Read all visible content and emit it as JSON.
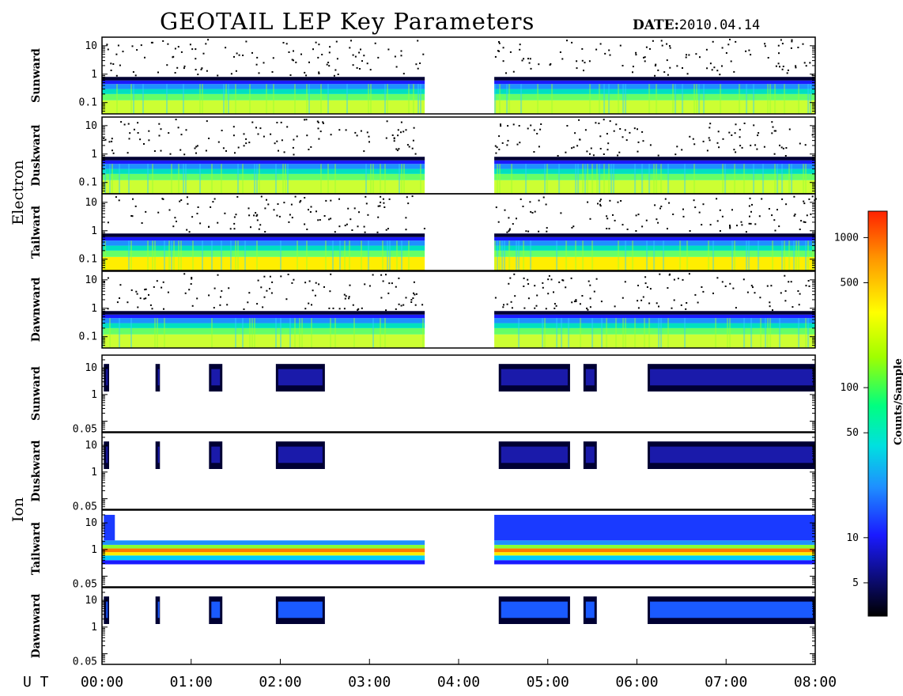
{
  "header": {
    "title": "GEOTAIL LEP Key Parameters",
    "date_label": "DATE:",
    "date_value": "2010.04.14"
  },
  "groups": [
    {
      "name": "Electron",
      "panels": [
        "Sunward",
        "Duskward",
        "Tailward",
        "Dawnward"
      ],
      "yticks": [
        "10",
        "1",
        "0.1"
      ]
    },
    {
      "name": "Ion",
      "panels": [
        "Sunward",
        "Duskward",
        "Tailward",
        "Dawnward"
      ],
      "yticks": [
        "10",
        "1",
        "0.05"
      ]
    }
  ],
  "colorbar": {
    "title": "Counts/Sample",
    "ticks": [
      "1000",
      "500",
      "100",
      "50",
      "10",
      "5"
    ]
  },
  "chart_data": {
    "type": "heatmap",
    "title": "GEOTAIL LEP Key Parameters",
    "date": "2010.04.14",
    "x_axis_prefix": "U T",
    "x_ticks": [
      "00:00",
      "01:00",
      "02:00",
      "03:00",
      "04:00",
      "05:00",
      "06:00",
      "07:00",
      "08:00"
    ],
    "x_range_hours": [
      0,
      8
    ],
    "y_scale": "log",
    "data_gap_hours": [
      3.62,
      4.4
    ],
    "colorbar": {
      "label": "Counts/Sample",
      "scale": "log",
      "range": [
        3,
        1500
      ],
      "ticks": [
        5,
        10,
        50,
        100,
        500,
        1000
      ]
    },
    "panels": [
      {
        "species": "Electron",
        "direction": "Sunward",
        "ylim": [
          0.04,
          20
        ],
        "yticks": [
          0.1,
          1,
          10
        ]
      },
      {
        "species": "Electron",
        "direction": "Duskward",
        "ylim": [
          0.04,
          20
        ],
        "yticks": [
          0.1,
          1,
          10
        ]
      },
      {
        "species": "Electron",
        "direction": "Tailward",
        "ylim": [
          0.04,
          20
        ],
        "yticks": [
          0.1,
          1,
          10
        ]
      },
      {
        "species": "Electron",
        "direction": "Dawnward",
        "ylim": [
          0.04,
          20
        ],
        "yticks": [
          0.1,
          1,
          10
        ]
      },
      {
        "species": "Ion",
        "direction": "Sunward",
        "ylim": [
          0.04,
          30
        ],
        "yticks": [
          0.05,
          1,
          10
        ]
      },
      {
        "species": "Ion",
        "direction": "Duskward",
        "ylim": [
          0.04,
          30
        ],
        "yticks": [
          0.05,
          1,
          10
        ]
      },
      {
        "species": "Ion",
        "direction": "Tailward",
        "ylim": [
          0.04,
          30
        ],
        "yticks": [
          0.05,
          1,
          10
        ]
      },
      {
        "species": "Ion",
        "direction": "Dawnward",
        "ylim": [
          0.04,
          30
        ],
        "yticks": [
          0.05,
          1,
          10
        ]
      }
    ],
    "colors": {
      "colormap": [
        "#000000",
        "#0a0a66",
        "#1a1aff",
        "#1e90ff",
        "#00e0e0",
        "#00ff80",
        "#a0ff00",
        "#ffff00",
        "#ff9900",
        "#ff2200"
      ]
    }
  }
}
